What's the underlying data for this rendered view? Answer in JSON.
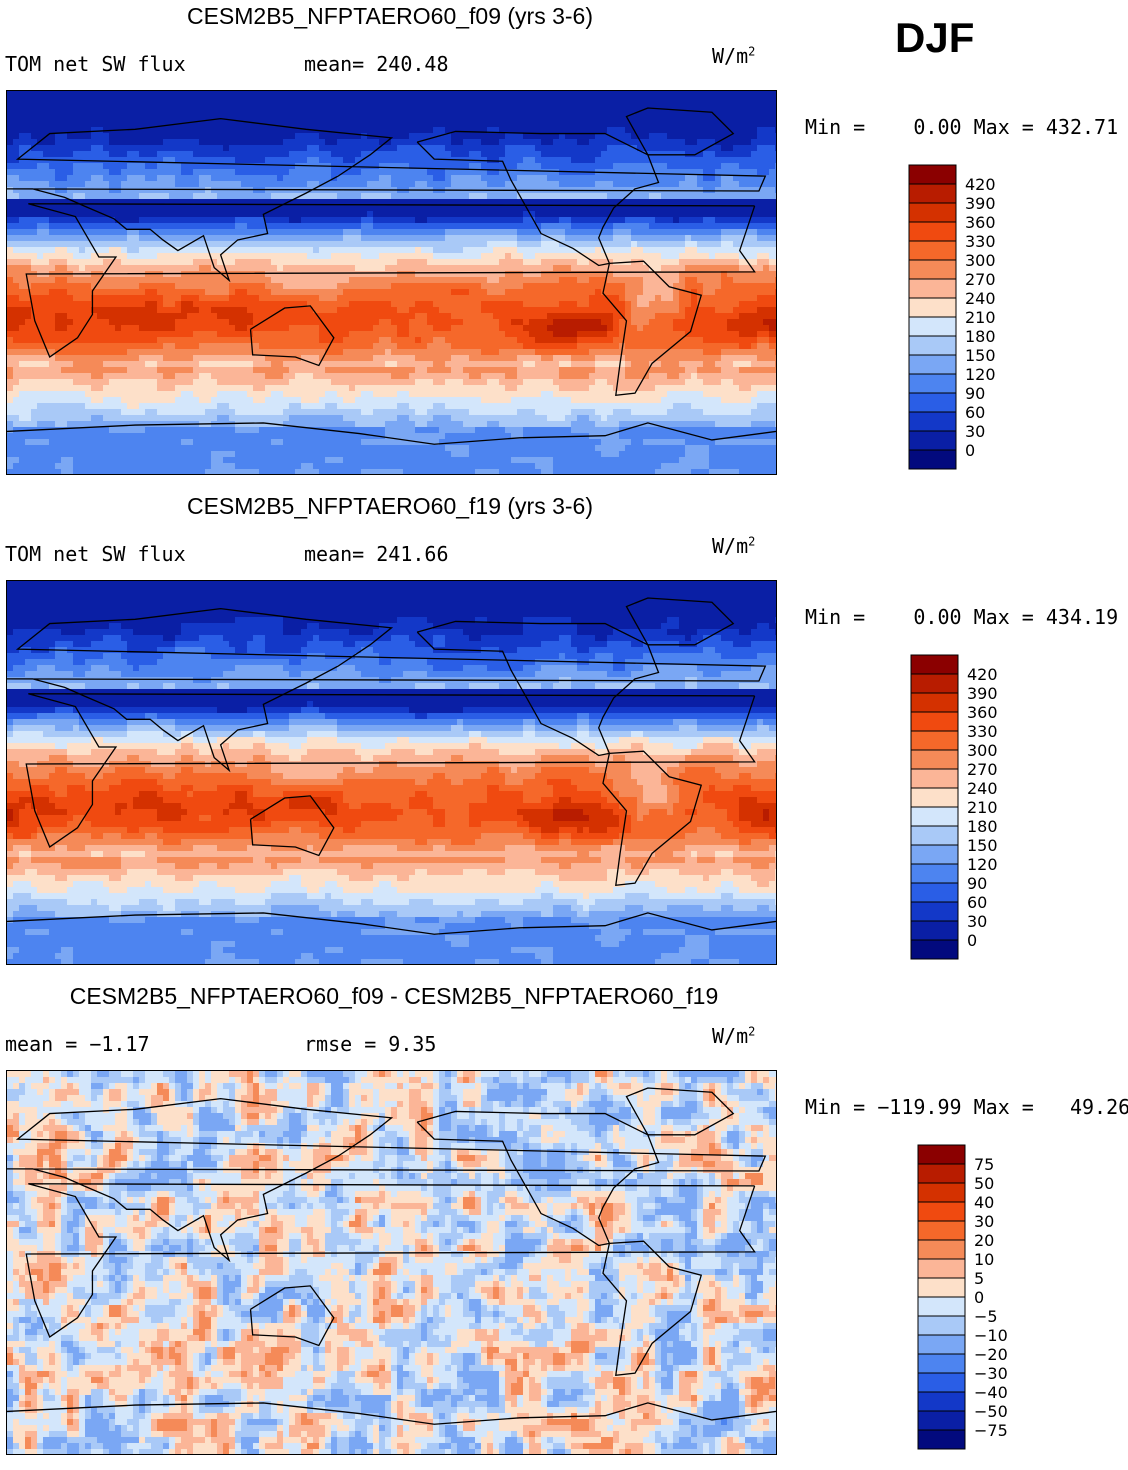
{
  "season": "DJF",
  "chart_data": [
    {
      "type": "heatmap",
      "title": "CESM2B5_NFPTAERO60_f09 (yrs 3-6)",
      "variable": "TOM net SW flux",
      "stat_text": "mean= 240.48",
      "units": "W/m",
      "units_sup": "2",
      "min_text": "Min =",
      "min_value": "0.00",
      "max_text": "Max =",
      "max_value": "432.71",
      "levels": [
        "420",
        "390",
        "360",
        "330",
        "300",
        "270",
        "240",
        "210",
        "180",
        "150",
        "120",
        "90",
        "60",
        "30",
        "0"
      ],
      "colors": [
        "#8b0000",
        "#b81c00",
        "#d43100",
        "#f04a10",
        "#f5682a",
        "#f58a58",
        "#fbb597",
        "#fde0c9",
        "#ffffff",
        "#d3e6fb",
        "#a9c9f7",
        "#7aa7f4",
        "#4d84f0",
        "#2a5ee6",
        "#1338c8",
        "#0a1fa5",
        "#020a7e"
      ]
    },
    {
      "type": "heatmap",
      "title": "CESM2B5_NFPTAERO60_f19 (yrs 3-6)",
      "variable": "TOM net SW flux",
      "stat_text": "mean= 241.66",
      "units": "W/m",
      "units_sup": "2",
      "min_text": "Min =",
      "min_value": "0.00",
      "max_text": "Max =",
      "max_value": "434.19",
      "levels": [
        "420",
        "390",
        "360",
        "330",
        "300",
        "270",
        "240",
        "210",
        "180",
        "150",
        "120",
        "90",
        "60",
        "30",
        "0"
      ],
      "colors": [
        "#8b0000",
        "#b81c00",
        "#d43100",
        "#f04a10",
        "#f5682a",
        "#f58a58",
        "#fbb597",
        "#fde0c9",
        "#ffffff",
        "#d3e6fb",
        "#a9c9f7",
        "#7aa7f4",
        "#4d84f0",
        "#2a5ee6",
        "#1338c8",
        "#0a1fa5",
        "#020a7e"
      ]
    },
    {
      "type": "heatmap",
      "title": "CESM2B5_NFPTAERO60_f09 - CESM2B5_NFPTAERO60_f19",
      "stat_text": "mean =   −1.17",
      "stat2_text": "rmse =    9.35",
      "units": "W/m",
      "units_sup": "2",
      "min_text": "Min =",
      "min_value": "−119.99",
      "max_text": "Max =",
      "max_value": "49.26",
      "levels": [
        "75",
        "50",
        "40",
        "30",
        "20",
        "10",
        "5",
        "0",
        "−5",
        "−10",
        "−20",
        "−30",
        "−40",
        "−50",
        "−75"
      ],
      "colors": [
        "#8b0000",
        "#b81c00",
        "#d43100",
        "#f04a10",
        "#f5682a",
        "#f58a58",
        "#fbb597",
        "#fde0c9",
        "#ffffff",
        "#d3e6fb",
        "#a9c9f7",
        "#7aa7f4",
        "#4d84f0",
        "#2a5ee6",
        "#1338c8",
        "#0a1fa5",
        "#020a7e"
      ]
    }
  ]
}
